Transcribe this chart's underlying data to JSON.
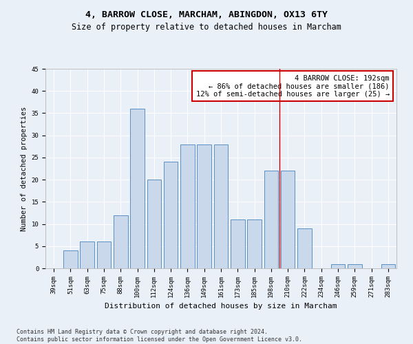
{
  "title": "4, BARROW CLOSE, MARCHAM, ABINGDON, OX13 6TY",
  "subtitle": "Size of property relative to detached houses in Marcham",
  "xlabel": "Distribution of detached houses by size in Marcham",
  "ylabel": "Number of detached properties",
  "categories": [
    "39sqm",
    "51sqm",
    "63sqm",
    "75sqm",
    "88sqm",
    "100sqm",
    "112sqm",
    "124sqm",
    "136sqm",
    "149sqm",
    "161sqm",
    "173sqm",
    "185sqm",
    "198sqm",
    "210sqm",
    "222sqm",
    "234sqm",
    "246sqm",
    "259sqm",
    "271sqm",
    "283sqm"
  ],
  "values": [
    0,
    4,
    6,
    6,
    12,
    36,
    20,
    24,
    28,
    28,
    28,
    11,
    11,
    22,
    22,
    9,
    0,
    1,
    1,
    0,
    1
  ],
  "bar_color": "#c9d9eb",
  "bar_edge_color": "#5a8fc2",
  "background_color": "#eaf0f8",
  "grid_color": "#ffffff",
  "vline_index": 13.5,
  "vline_color": "#cc0000",
  "annotation_text": "4 BARROW CLOSE: 192sqm\n← 86% of detached houses are smaller (186)\n12% of semi-detached houses are larger (25) →",
  "annotation_box_color": "#ffffff",
  "annotation_box_edge_color": "#cc0000",
  "ylim": [
    0,
    45
  ],
  "yticks": [
    0,
    5,
    10,
    15,
    20,
    25,
    30,
    35,
    40,
    45
  ],
  "footer_text": "Contains HM Land Registry data © Crown copyright and database right 2024.\nContains public sector information licensed under the Open Government Licence v3.0.",
  "title_fontsize": 9.5,
  "subtitle_fontsize": 8.5,
  "xlabel_fontsize": 8,
  "ylabel_fontsize": 7.5,
  "tick_fontsize": 6.5,
  "annotation_fontsize": 7.5,
  "footer_fontsize": 6
}
